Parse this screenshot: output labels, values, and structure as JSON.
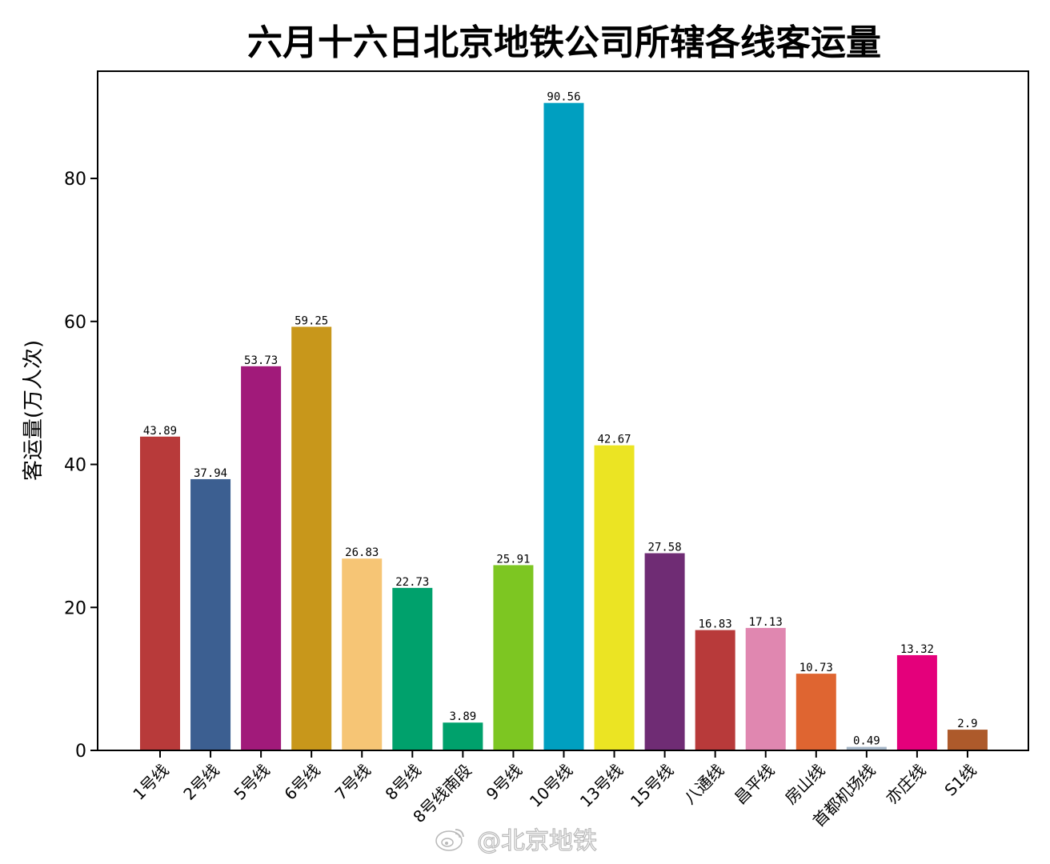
{
  "watermark": {
    "text": "@北京地铁",
    "icon": "weibo-icon"
  },
  "chart_data": {
    "type": "bar",
    "title": "六月十六日北京地铁公司所辖各线客运量",
    "ylabel": "客运量(万人次)",
    "xlabel": "",
    "ylim": [
      0,
      95
    ],
    "yticks": [
      0,
      20,
      40,
      60,
      80
    ],
    "grid": false,
    "legend": "none",
    "categories": [
      "1号线",
      "2号线",
      "5号线",
      "6号线",
      "7号线",
      "8号线",
      "8号线南段",
      "9号线",
      "10号线",
      "13号线",
      "15号线",
      "八通线",
      "昌平线",
      "房山线",
      "首都机场线",
      "亦庄线",
      "S1线"
    ],
    "values": [
      43.89,
      37.94,
      53.73,
      59.25,
      26.83,
      22.73,
      3.89,
      25.91,
      90.56,
      42.67,
      27.58,
      16.83,
      17.13,
      10.73,
      0.49,
      13.32,
      2.9
    ],
    "value_labels": [
      "43.89",
      "37.94",
      "53.73",
      "59.25",
      "26.83",
      "22.73",
      "3.89",
      "25.91",
      "90.56",
      "42.67",
      "27.58",
      "16.83",
      "17.13",
      "10.73",
      "0.49",
      "13.32",
      "2.9"
    ],
    "colors": [
      "#b83a3a",
      "#3c5f91",
      "#a11a7a",
      "#c8971b",
      "#f6c575",
      "#00a16c",
      "#00a16c",
      "#7dc622",
      "#009fc0",
      "#ebe423",
      "#6f2c74",
      "#b83a3a",
      "#e087b0",
      "#df6531",
      "#a6b7c8",
      "#e4007b",
      "#ad5a2b"
    ]
  }
}
